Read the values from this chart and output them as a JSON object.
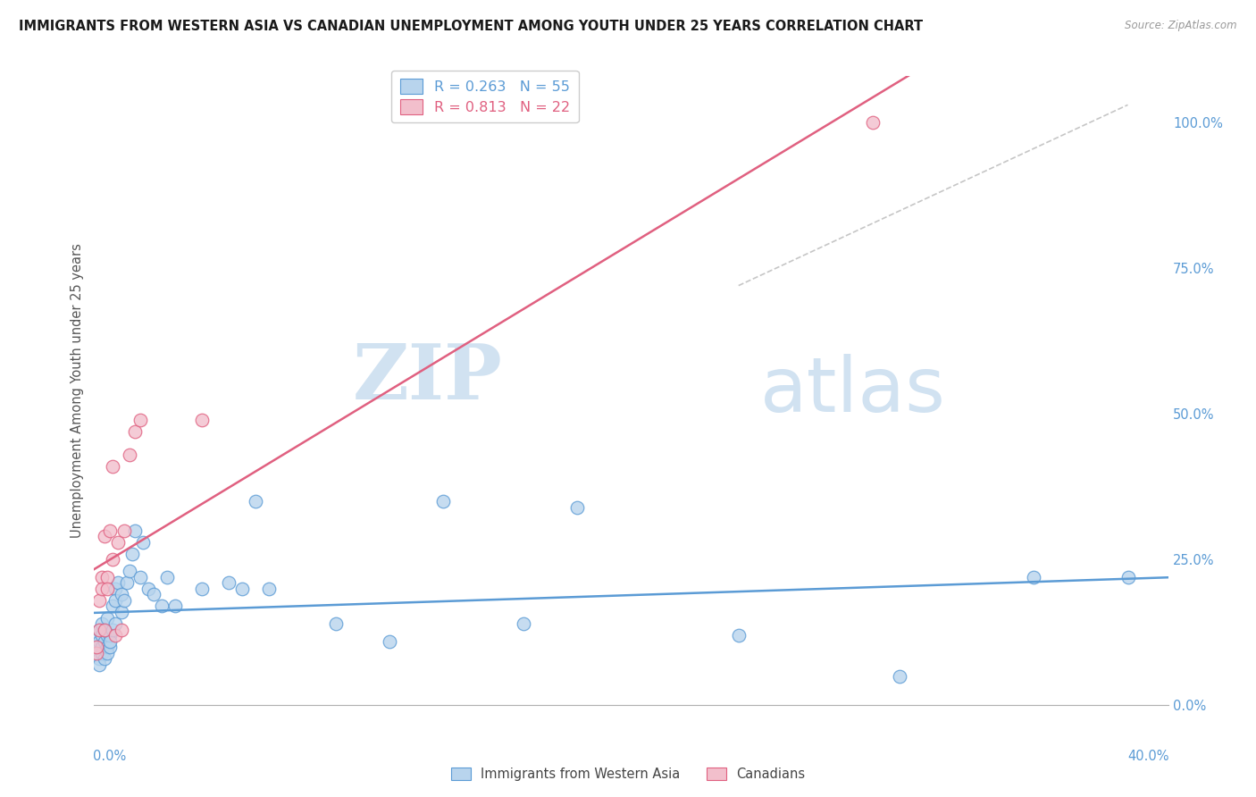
{
  "title": "IMMIGRANTS FROM WESTERN ASIA VS CANADIAN UNEMPLOYMENT AMONG YOUTH UNDER 25 YEARS CORRELATION CHART",
  "source": "Source: ZipAtlas.com",
  "ylabel": "Unemployment Among Youth under 25 years",
  "legend1_label": "R = 0.263   N = 55",
  "legend2_label": "R = 0.813   N = 22",
  "trend1_color": "#5b9bd5",
  "trend2_color": "#e06080",
  "scatter1_color": "#b8d4ed",
  "scatter2_color": "#f2bfcc",
  "watermark_zip": "ZIP",
  "watermark_atlas": "atlas",
  "xmin": 0.0,
  "xmax": 0.4,
  "ymin": 0.0,
  "ymax": 1.08,
  "blue_x": [
    0.001,
    0.001,
    0.001,
    0.002,
    0.002,
    0.002,
    0.002,
    0.003,
    0.003,
    0.003,
    0.003,
    0.004,
    0.004,
    0.004,
    0.005,
    0.005,
    0.005,
    0.005,
    0.006,
    0.006,
    0.006,
    0.007,
    0.007,
    0.008,
    0.008,
    0.008,
    0.009,
    0.01,
    0.01,
    0.011,
    0.012,
    0.013,
    0.014,
    0.015,
    0.017,
    0.018,
    0.02,
    0.022,
    0.025,
    0.027,
    0.03,
    0.04,
    0.05,
    0.055,
    0.06,
    0.065,
    0.09,
    0.11,
    0.13,
    0.16,
    0.18,
    0.24,
    0.3,
    0.35,
    0.385
  ],
  "blue_y": [
    0.12,
    0.1,
    0.09,
    0.13,
    0.11,
    0.08,
    0.07,
    0.1,
    0.12,
    0.09,
    0.14,
    0.11,
    0.13,
    0.08,
    0.12,
    0.1,
    0.09,
    0.15,
    0.1,
    0.12,
    0.11,
    0.13,
    0.17,
    0.2,
    0.18,
    0.14,
    0.21,
    0.19,
    0.16,
    0.18,
    0.21,
    0.23,
    0.26,
    0.3,
    0.22,
    0.28,
    0.2,
    0.19,
    0.17,
    0.22,
    0.17,
    0.2,
    0.21,
    0.2,
    0.35,
    0.2,
    0.14,
    0.11,
    0.35,
    0.14,
    0.34,
    0.12,
    0.05,
    0.22,
    0.22
  ],
  "pink_x": [
    0.001,
    0.001,
    0.002,
    0.002,
    0.003,
    0.003,
    0.004,
    0.004,
    0.005,
    0.005,
    0.006,
    0.007,
    0.007,
    0.008,
    0.009,
    0.01,
    0.011,
    0.013,
    0.015,
    0.017,
    0.04,
    0.29
  ],
  "pink_y": [
    0.09,
    0.1,
    0.13,
    0.18,
    0.22,
    0.2,
    0.29,
    0.13,
    0.22,
    0.2,
    0.3,
    0.25,
    0.41,
    0.12,
    0.28,
    0.13,
    0.3,
    0.43,
    0.47,
    0.49,
    0.49,
    1.0
  ],
  "grid_color": "#d8d8d8",
  "bg_color": "#ffffff",
  "dash_line_x": [
    0.24,
    0.385
  ],
  "dash_line_y": [
    0.72,
    1.03
  ]
}
